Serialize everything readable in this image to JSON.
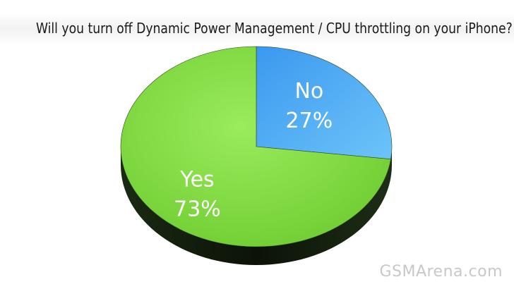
{
  "chart_data": {
    "type": "pie",
    "title": "Will you turn off Dynamic Power Management / CPU throttling on your iPhone?",
    "slices": [
      {
        "label": "No",
        "value": 27,
        "value_label": "27%",
        "color": "#44a8f4"
      },
      {
        "label": "Yes",
        "value": 73,
        "value_label": "73%",
        "color": "#88e04a"
      }
    ],
    "start": "top",
    "direction": "clockwise",
    "style": "3d"
  },
  "watermark": {
    "text": "GSMArena.com"
  }
}
